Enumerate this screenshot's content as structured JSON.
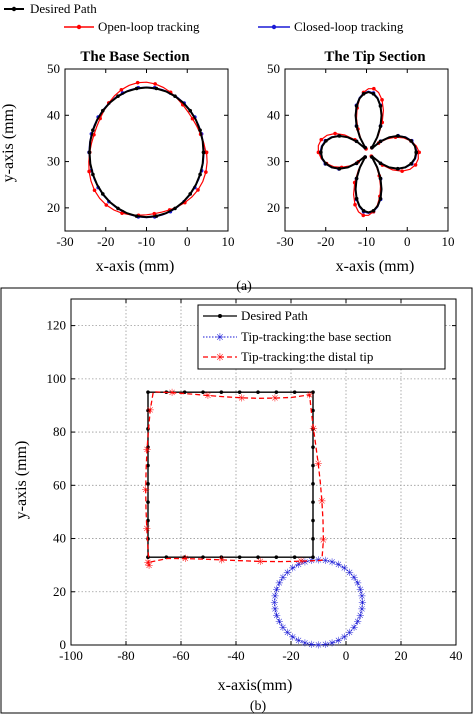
{
  "legend_top": {
    "desired": "Desired Path",
    "open": "Open-loop tracking",
    "closed": "Closed-loop tracking"
  },
  "caption_a": "(a)",
  "caption_b": "(b)",
  "colors": {
    "desired": "#000000",
    "open": "#ff0000",
    "closed": "#1a1ad6"
  },
  "chart_data": [
    {
      "type": "line",
      "title": "The Base Section",
      "xlabel": "x-axis (mm)",
      "ylabel": "y-axis (mm)",
      "xlim": [
        -30,
        10
      ],
      "ylim": [
        15,
        50
      ],
      "xticks": [
        -30,
        -20,
        -10,
        0,
        10
      ],
      "yticks": [
        20,
        30,
        40,
        50
      ],
      "grid": false,
      "series": [
        {
          "name": "Desired Path",
          "shape": "circle",
          "cx": -10,
          "cy": 32,
          "r": 14,
          "points": 36
        },
        {
          "name": "Open-loop tracking",
          "shape": "circle_noisy",
          "cx": -10,
          "cy": 32,
          "r": 14.3,
          "points": 44
        },
        {
          "name": "Closed-loop tracking",
          "shape": "circle",
          "cx": -10,
          "cy": 32,
          "r": 14.1,
          "points": 44
        }
      ]
    },
    {
      "type": "line",
      "title": "The Tip Section",
      "xlabel": "x-axis (mm)",
      "ylabel": "",
      "xlim": [
        -30,
        10
      ],
      "ylim": [
        15,
        50
      ],
      "xticks": [
        -30,
        -20,
        -10,
        0,
        10
      ],
      "yticks": [
        20,
        30,
        40,
        50
      ],
      "grid": false,
      "series": [
        {
          "name": "Desired Path",
          "shape": "four_petal",
          "cx": -9.5,
          "cy": 32,
          "a": 13,
          "points": 60
        },
        {
          "name": "Open-loop tracking",
          "shape": "four_petal_noisy",
          "cx": -9.5,
          "cy": 32,
          "a": 13.5,
          "points": 60
        },
        {
          "name": "Closed-loop tracking",
          "shape": "four_petal",
          "cx": -9.5,
          "cy": 32,
          "a": 13.2,
          "points": 60
        }
      ]
    },
    {
      "type": "line",
      "title": "",
      "xlabel": "x-axis(mm)",
      "ylabel": "y-axis (mm)",
      "xlim": [
        -100,
        40
      ],
      "ylim": [
        0,
        130
      ],
      "xticks": [
        -100,
        -80,
        -60,
        -40,
        -20,
        0,
        20,
        40
      ],
      "yticks": [
        0,
        20,
        40,
        60,
        80,
        100,
        120
      ],
      "grid": true,
      "legend": [
        "Desired Path",
        "Tip-tracking:the base section",
        "Tip-tracking:the distal tip"
      ],
      "series": [
        {
          "name": "Desired Path",
          "shape": "rectangle",
          "corners": [
            [
              -72,
              33
            ],
            [
              -72,
              95
            ],
            [
              -12,
              95
            ],
            [
              -12,
              33
            ]
          ]
        },
        {
          "name": "Tip-tracking:the base section",
          "shape": "circle",
          "cx": -10,
          "cy": 16,
          "r": 16
        },
        {
          "name": "Tip-tracking:the distal tip",
          "shape": "rectangle_noisy",
          "corners": [
            [
              -72,
              31
            ],
            [
              -71,
              94
            ],
            [
              -12,
              94
            ],
            [
              -9,
              33
            ]
          ]
        }
      ]
    }
  ]
}
